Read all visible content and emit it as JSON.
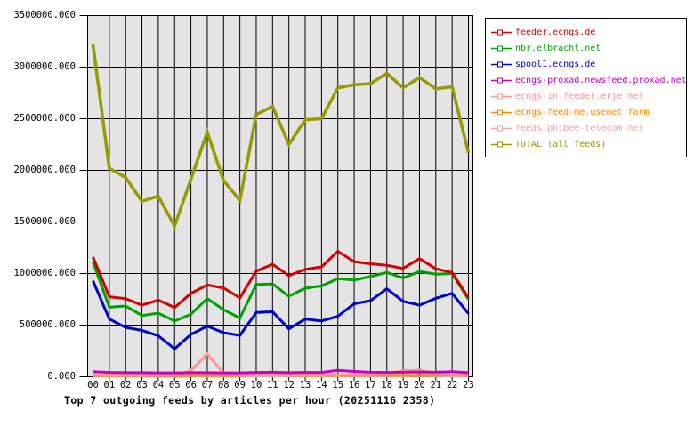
{
  "chart_data": {
    "type": "line",
    "title": "Top 7 outgoing feeds by articles per hour (20251116 2358)",
    "xlabel": "",
    "ylabel": "",
    "ylim": [
      0,
      3500000
    ],
    "grid": true,
    "legend_position": "top-right",
    "plot_background": "#e4e4e4",
    "y_ticks": [
      {
        "value": 0,
        "label": "0.000"
      },
      {
        "value": 500000,
        "label": "500000.000"
      },
      {
        "value": 1000000,
        "label": "1000000.000"
      },
      {
        "value": 1500000,
        "label": "1500000.000"
      },
      {
        "value": 2000000,
        "label": "2000000.000"
      },
      {
        "value": 2500000,
        "label": "2500000.000"
      },
      {
        "value": 3000000,
        "label": "3000000.000"
      },
      {
        "value": 3500000,
        "label": "3500000.000"
      }
    ],
    "categories": [
      "00",
      "01",
      "02",
      "03",
      "04",
      "05",
      "06",
      "07",
      "08",
      "09",
      "10",
      "11",
      "12",
      "13",
      "14",
      "15",
      "16",
      "17",
      "18",
      "19",
      "20",
      "21",
      "22",
      "23"
    ],
    "series": [
      {
        "name": "feeder.ecngs.de",
        "color": "#d40000",
        "values": [
          1160000,
          775000,
          757000,
          694000,
          743000,
          670000,
          808000,
          890000,
          860000,
          765000,
          1023000,
          1090000,
          980000,
          1040000,
          1065000,
          1215000,
          1115000,
          1095000,
          1080000,
          1050000,
          1145000,
          1046000,
          1010000,
          765000
        ]
      },
      {
        "name": "nbr.elbracht.net",
        "color": "#00a000",
        "values": [
          1110000,
          674000,
          685000,
          593000,
          616000,
          540000,
          606000,
          757000,
          649000,
          569000,
          894000,
          900000,
          780000,
          858000,
          880000,
          950000,
          937000,
          971000,
          1010000,
          957000,
          1020000,
          994000,
          1000000,
          750000
        ]
      },
      {
        "name": "spool1.ecngs.de",
        "color": "#0000cc",
        "values": [
          930000,
          559000,
          478000,
          449000,
          397000,
          270000,
          410000,
          490000,
          426000,
          400000,
          622000,
          630000,
          464000,
          559000,
          540000,
          586000,
          707000,
          736000,
          852000,
          731000,
          693000,
          760000,
          808000,
          612000
        ]
      },
      {
        "name": "ecngs-proxad.newsfeed.proxad.net",
        "color": "#c400c4",
        "values": [
          50000,
          42000,
          40000,
          40000,
          38000,
          38000,
          40000,
          40000,
          38000,
          38000,
          42000,
          44000,
          40000,
          42000,
          42000,
          62000,
          52000,
          44000,
          42000,
          44000,
          46000,
          44000,
          50000,
          40000
        ]
      },
      {
        "name": "ecngs-in.feeder.erje.net",
        "color": "#ff9494",
        "values": [
          20000,
          16000,
          15000,
          15000,
          14000,
          15000,
          60000,
          220000,
          35000,
          16000,
          18000,
          18000,
          16000,
          18000,
          18000,
          20000,
          20000,
          22000,
          32000,
          58000,
          62000,
          36000,
          22000,
          20000
        ]
      },
      {
        "name": "ecngs-feed-me.usenet.farm",
        "color": "#ff8800",
        "values": [
          16000,
          12000,
          11000,
          11000,
          10000,
          10000,
          12000,
          12000,
          11000,
          12000,
          22000,
          24000,
          13000,
          13000,
          14000,
          14000,
          14000,
          14000,
          14000,
          14000,
          15000,
          14000,
          18000,
          14000
        ]
      },
      {
        "name": "feeds.phibee-telecom.net",
        "color": "#e8a8a8",
        "values": [
          10000,
          8000,
          8000,
          7000,
          7000,
          7000,
          8000,
          9000,
          8000,
          8000,
          9000,
          9000,
          8000,
          9000,
          9000,
          9000,
          9000,
          9000,
          9000,
          9000,
          10000,
          9000,
          9000,
          8000
        ]
      },
      {
        "name": "TOTAL (all feeds)",
        "color": "#989800",
        "values": [
          3220000,
          2020000,
          1930000,
          1700000,
          1750000,
          1460000,
          1915000,
          2370000,
          1900000,
          1710000,
          2540000,
          2620000,
          2250000,
          2490000,
          2500000,
          2800000,
          2830000,
          2840000,
          2940000,
          2800000,
          2900000,
          2790000,
          2810000,
          2170000
        ]
      }
    ]
  }
}
